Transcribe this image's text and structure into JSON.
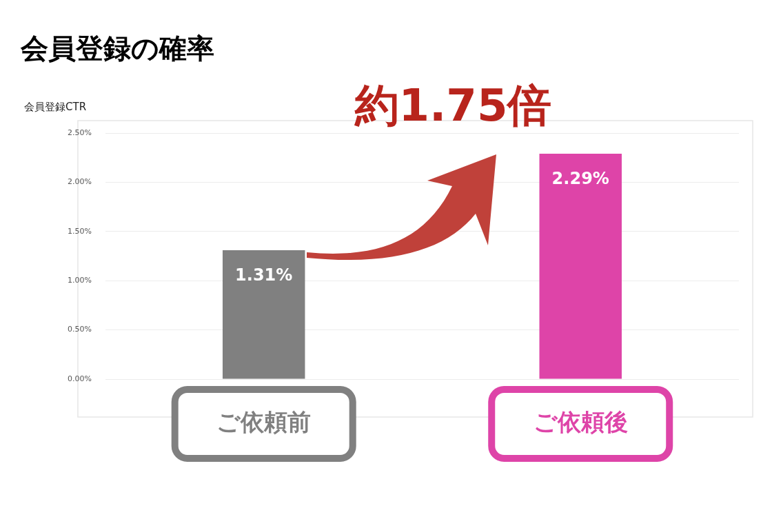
{
  "chart_data": {
    "type": "bar",
    "title": "会員登録の確率",
    "ylabel": "会員登録CTR",
    "categories": [
      "ご依頼前",
      "ご依頼後"
    ],
    "values": [
      1.31,
      2.29
    ],
    "colors": [
      "#808080",
      "#de44a8"
    ],
    "value_labels": [
      "1.31%",
      "2.29%"
    ],
    "ylim": [
      0,
      2.5
    ],
    "yticks": [
      {
        "value": 0,
        "label": "0.00%"
      },
      {
        "value": 0.5,
        "label": "0.50%"
      },
      {
        "value": 1,
        "label": "1.00%"
      },
      {
        "value": 1.5,
        "label": "1.50%"
      },
      {
        "value": 2,
        "label": "2.00%"
      },
      {
        "value": 2.5,
        "label": "2.50%"
      }
    ],
    "grid": "y",
    "legend": false,
    "annotations": [
      "約1.75倍"
    ]
  }
}
